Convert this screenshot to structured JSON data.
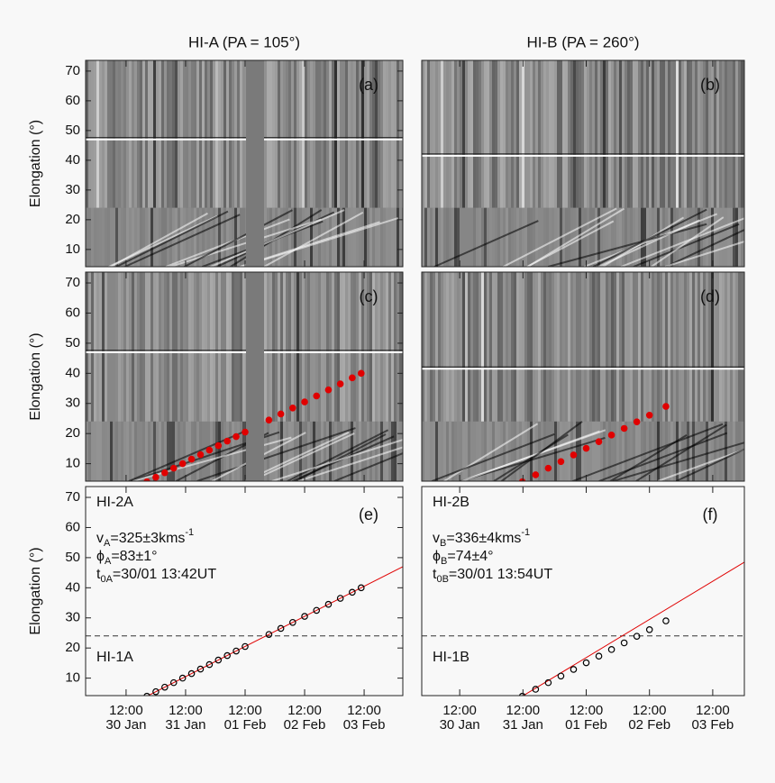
{
  "chart_data": [
    {
      "type": "jmap",
      "title": "HI-A (PA = 105°)",
      "label": "(a)",
      "ylabel": "Elongation (°)",
      "xlim": [
        -0.18,
        5.15
      ],
      "ylim": [
        4.2,
        73.6
      ],
      "yticks": [
        10,
        20,
        30,
        40,
        50,
        60,
        70
      ]
    },
    {
      "type": "jmap",
      "title": "HI-B (PA = 260°)",
      "label": "(b)",
      "xlim": [
        -0.1,
        5.0
      ],
      "ylim": [
        4.2,
        73.6
      ]
    },
    {
      "type": "jmap",
      "label": "(c)",
      "ylabel": "Elongation (°)",
      "xlim": [
        -0.18,
        5.15
      ],
      "ylim": [
        4.2,
        73.6
      ],
      "yticks": [
        10,
        20,
        30,
        40,
        50,
        60,
        70
      ],
      "points": {
        "color": "#e00000",
        "x": [
          0.85,
          1.0,
          1.15,
          1.3,
          1.45,
          1.6,
          1.75,
          1.9,
          2.05,
          2.2,
          2.35,
          2.5,
          2.9,
          3.1,
          3.3,
          3.5,
          3.7,
          3.9,
          4.1,
          4.3,
          4.45
        ],
        "y": [
          4,
          5.5,
          7,
          8.5,
          10,
          11.5,
          13,
          14.5,
          16,
          17.5,
          19,
          20.5,
          24.5,
          26.5,
          28.5,
          30.5,
          32.5,
          34.5,
          36.5,
          38.5,
          40
        ]
      }
    },
    {
      "type": "jmap",
      "label": "(d)",
      "xlim": [
        -0.1,
        5.0
      ],
      "ylim": [
        4.2,
        73.6
      ],
      "points": {
        "color": "#e00000",
        "x": [
          1.49,
          1.7,
          1.9,
          2.1,
          2.3,
          2.5,
          2.7,
          2.9,
          3.1,
          3.3,
          3.5,
          3.76
        ],
        "y": [
          4,
          6.3,
          8.5,
          10.7,
          12.9,
          15.1,
          17.3,
          19.5,
          21.7,
          23.9,
          26.1,
          29
        ]
      }
    },
    {
      "type": "fit",
      "label": "(e)",
      "ylabel": "Elongation (°)",
      "xlim": [
        -0.18,
        5.15
      ],
      "ylim": [
        4.2,
        73.6
      ],
      "yticks": [
        10,
        20,
        30,
        40,
        50,
        60,
        70
      ],
      "xticks": [
        {
          "value": 0.5,
          "label": "12:00",
          "date": "30 Jan"
        },
        {
          "value": 1.5,
          "label": "12:00",
          "date": "31 Jan"
        },
        {
          "value": 2.5,
          "label": "12:00",
          "date": "01 Feb"
        },
        {
          "value": 3.5,
          "label": "12:00",
          "date": "02 Feb"
        },
        {
          "value": 4.5,
          "label": "12:00",
          "date": "03 Feb"
        }
      ],
      "threshold": 24,
      "upper_label": "HI-2A",
      "lower_label": "HI-1A",
      "annotations": [
        [
          {
            "text": "v"
          },
          {
            "text": "A",
            "shift": "sub"
          },
          {
            "text": "=325±3kms"
          },
          {
            "text": "-1",
            "shift": "super"
          }
        ],
        [
          {
            "text": "ϕ"
          },
          {
            "text": "A",
            "shift": "sub"
          },
          {
            "text": "=83±1°"
          }
        ],
        [
          {
            "text": "t"
          },
          {
            "text": "0A",
            "shift": "sub"
          },
          {
            "text": "=30/01 13:42UT"
          }
        ]
      ],
      "fit": {
        "color": "#e00000",
        "x": [
          0.85,
          5.15
        ],
        "y": [
          4,
          47
        ]
      },
      "points": {
        "color": "#000000",
        "x": [
          0.85,
          1.0,
          1.15,
          1.3,
          1.45,
          1.6,
          1.75,
          1.9,
          2.05,
          2.2,
          2.35,
          2.5,
          2.9,
          3.1,
          3.3,
          3.5,
          3.7,
          3.9,
          4.1,
          4.3,
          4.45
        ],
        "y": [
          4,
          5.5,
          7,
          8.5,
          10,
          11.5,
          13,
          14.5,
          16,
          17.5,
          19,
          20.5,
          24.5,
          26.5,
          28.5,
          30.5,
          32.5,
          34.5,
          36.5,
          38.5,
          40
        ]
      }
    },
    {
      "type": "fit",
      "label": "(f)",
      "xlim": [
        -0.1,
        5.0
      ],
      "ylim": [
        4.2,
        73.6
      ],
      "xticks": [
        {
          "value": 0.5,
          "label": "12:00",
          "date": "30 Jan"
        },
        {
          "value": 1.5,
          "label": "12:00",
          "date": "31 Jan"
        },
        {
          "value": 2.5,
          "label": "12:00",
          "date": "01 Feb"
        },
        {
          "value": 3.5,
          "label": "12:00",
          "date": "02 Feb"
        },
        {
          "value": 4.5,
          "label": "12:00",
          "date": "03 Feb"
        }
      ],
      "threshold": 24,
      "upper_label": "HI-2B",
      "lower_label": "HI-1B",
      "annotations": [
        [
          {
            "text": "v"
          },
          {
            "text": "B",
            "shift": "sub"
          },
          {
            "text": "=336±4kms"
          },
          {
            "text": "-1",
            "shift": "super"
          }
        ],
        [
          {
            "text": "ϕ"
          },
          {
            "text": "B",
            "shift": "sub"
          },
          {
            "text": "=74±4°"
          }
        ],
        [
          {
            "text": "t"
          },
          {
            "text": "0B",
            "shift": "sub"
          },
          {
            "text": "=30/01 13:54UT"
          }
        ]
      ],
      "fit": {
        "color": "#e00000",
        "x": [
          1.49,
          5.0
        ],
        "y": [
          4,
          48.5
        ]
      },
      "points": {
        "color": "#000000",
        "x": [
          1.49,
          1.7,
          1.9,
          2.1,
          2.3,
          2.5,
          2.7,
          2.9,
          3.1,
          3.3,
          3.5,
          3.76
        ],
        "y": [
          4,
          6.3,
          8.5,
          10.7,
          12.9,
          15.1,
          17.3,
          19.5,
          21.7,
          23.9,
          26.1,
          29
        ]
      }
    }
  ]
}
